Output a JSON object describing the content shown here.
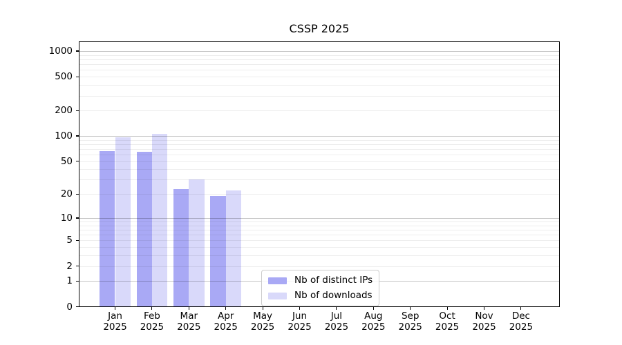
{
  "chart_data": {
    "type": "bar",
    "title": "CSSP 2025",
    "x_month_labels": [
      "Jan",
      "Feb",
      "Mar",
      "Apr",
      "May",
      "Jun",
      "Jul",
      "Aug",
      "Sep",
      "Oct",
      "Nov",
      "Dec"
    ],
    "x_year_label": "2025",
    "series": [
      {
        "name": "Nb of distinct IPs",
        "color": "#a9a9f5",
        "values": [
          66,
          65,
          23,
          19,
          0,
          0,
          0,
          0,
          0,
          0,
          0,
          0
        ]
      },
      {
        "name": "Nb of downloads",
        "color": "#d9d9fa",
        "values": [
          97,
          106,
          30,
          22,
          0,
          0,
          0,
          0,
          0,
          0,
          0,
          0
        ]
      }
    ],
    "scale": "log1p",
    "ylim": [
      0,
      1300
    ],
    "y_ticks": [
      0,
      1,
      2,
      5,
      10,
      20,
      50,
      100,
      200,
      500,
      1000
    ],
    "grid": {
      "major": [
        1,
        10,
        100,
        1000
      ],
      "minor": [
        2,
        3,
        4,
        5,
        6,
        7,
        8,
        9,
        20,
        30,
        40,
        50,
        60,
        70,
        80,
        90,
        200,
        300,
        400,
        500,
        600,
        700,
        800,
        900
      ]
    },
    "legend": {
      "position": "lower center-left"
    }
  }
}
